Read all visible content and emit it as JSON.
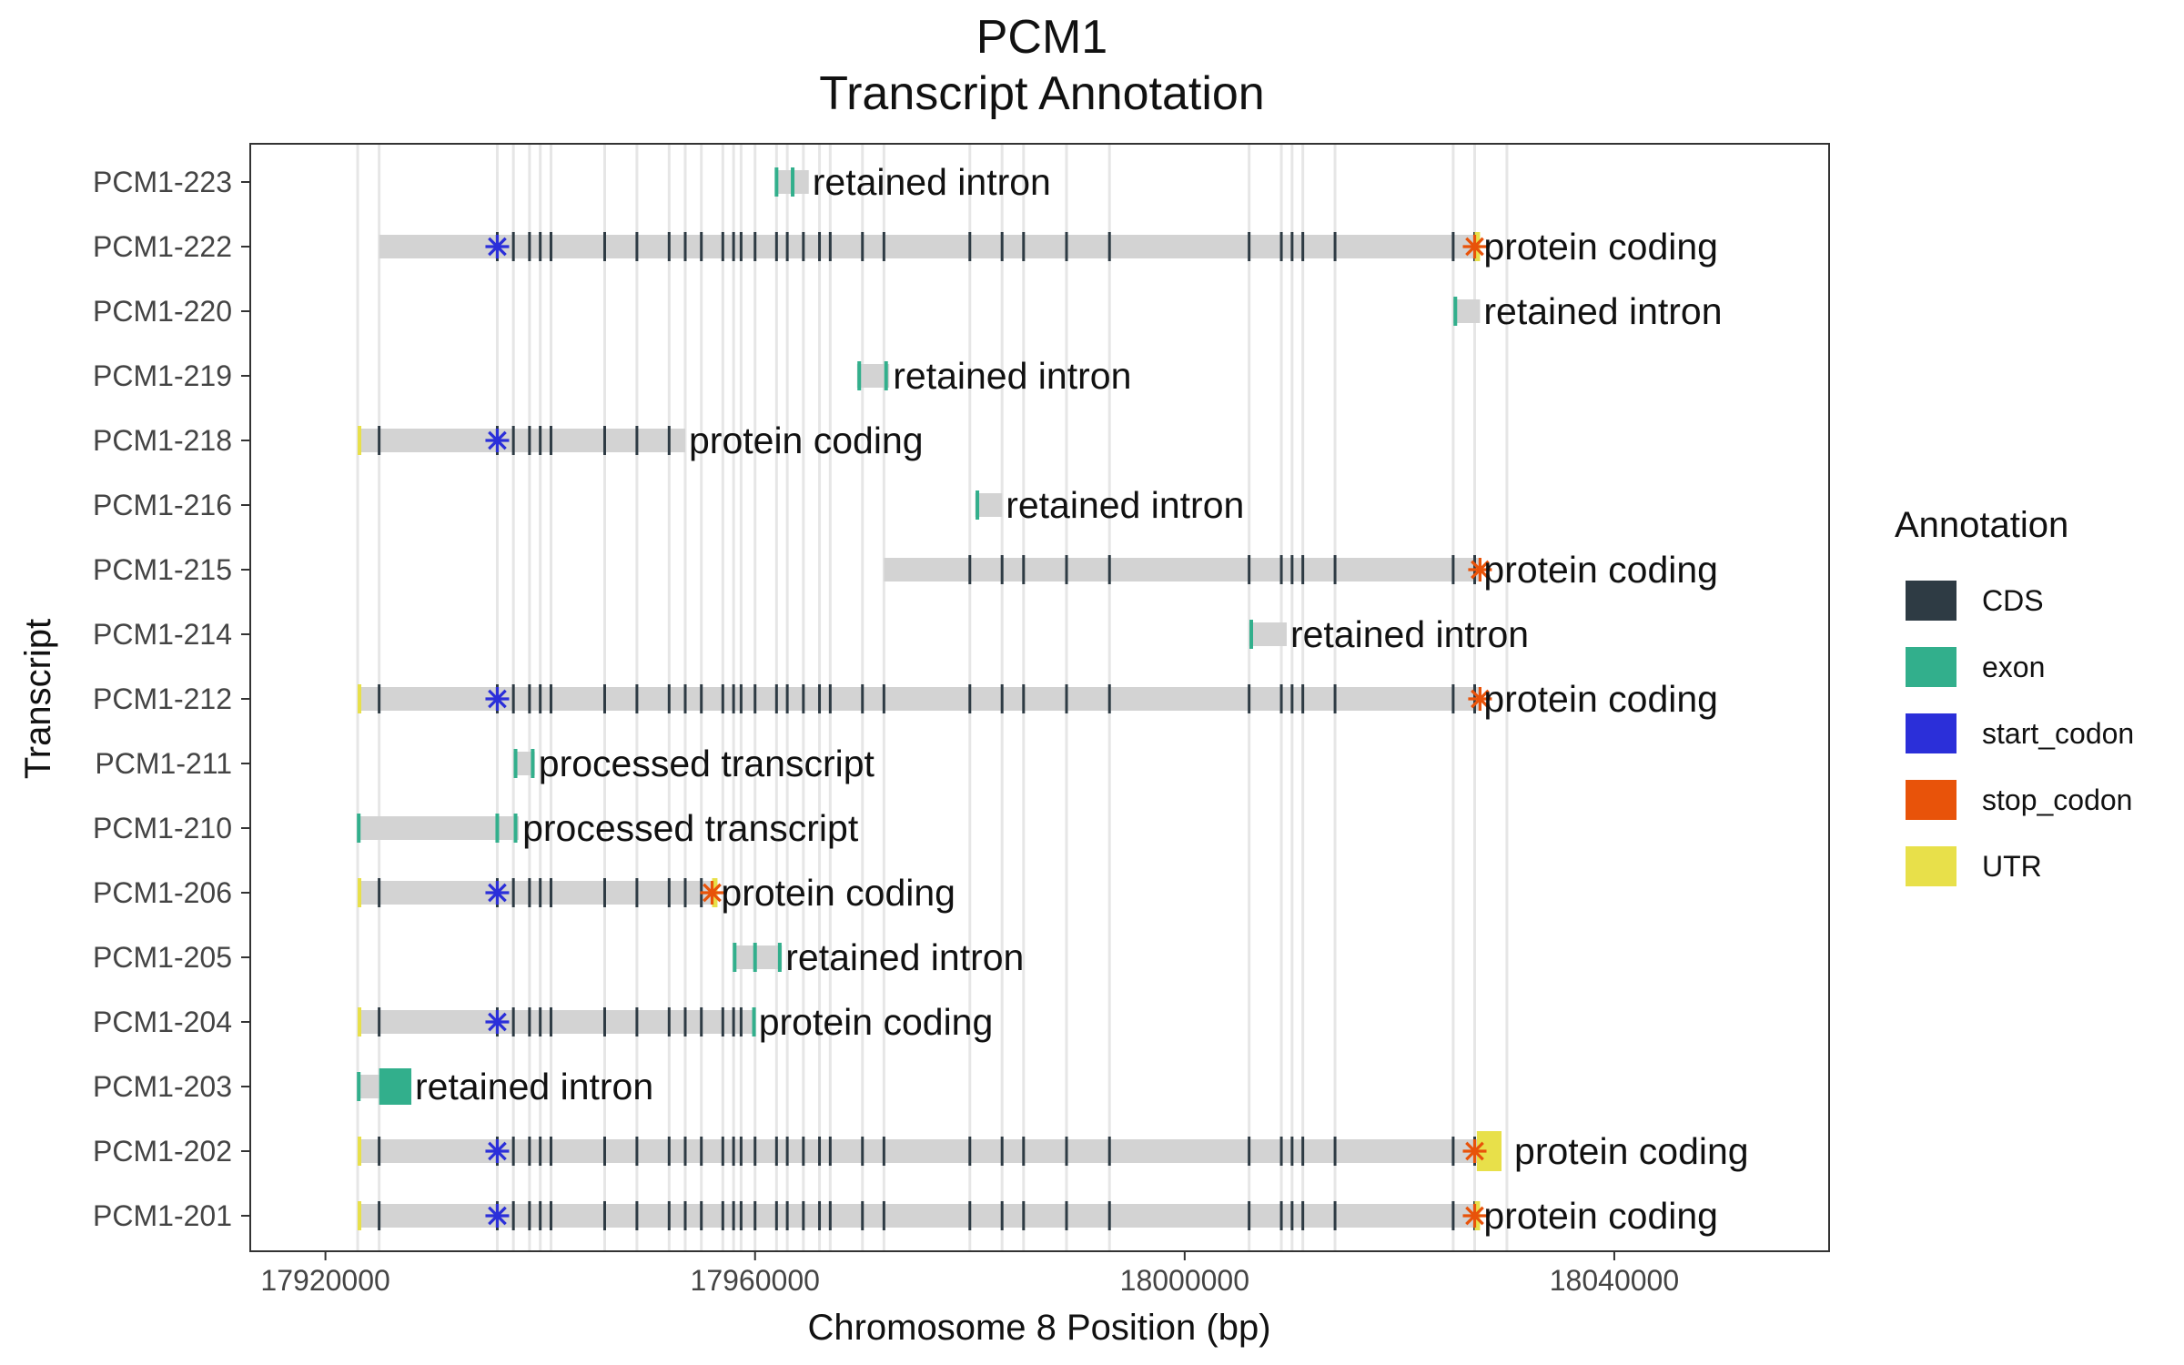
{
  "chart_data": {
    "type": "transcript-annotation",
    "title": "PCM1",
    "subtitle": "Transcript Annotation",
    "xlabel": "Chromosome 8 Position (bp)",
    "ylabel": "Transcript",
    "xlim": [
      17913000,
      18060000
    ],
    "x_ticks": [
      17920000,
      17960000,
      18000000,
      18040000
    ],
    "x_tick_labels": [
      "17920000",
      "17960000",
      "18000000",
      "18040000"
    ],
    "grid": true,
    "legend": {
      "title": "Annotation",
      "position": "right",
      "entries": [
        {
          "label": "CDS",
          "color": "#2E3B44"
        },
        {
          "label": "exon",
          "color": "#32AF8C"
        },
        {
          "label": "start_codon",
          "color": "#2B2FD9"
        },
        {
          "label": "stop_codon",
          "color": "#E8530A"
        },
        {
          "label": "UTR",
          "color": "#E8E04A"
        }
      ]
    },
    "exon_positions": [
      17923000,
      17925000,
      17936000,
      17937500,
      17939000,
      17940000,
      17941000,
      17946000,
      17949000,
      17952000,
      17953500,
      17955000,
      17957000,
      17958000,
      17958700,
      17960000,
      17962000,
      17963000,
      17964500,
      17966000,
      17967000,
      17970000,
      17972000,
      17980000,
      17983000,
      17985000,
      17989000,
      17993000,
      18006000,
      18009000,
      18010000,
      18011000,
      18014000,
      18025000,
      18027000,
      18030000
    ],
    "transcripts": [
      {
        "name": "PCM1-223",
        "biotype": "retained intron",
        "start": 17962000,
        "end": 17965000,
        "exons": [
          17962000,
          17963500
        ],
        "cds": false,
        "start_codon": null,
        "stop_codon": null,
        "utr5": null,
        "utr3": null
      },
      {
        "name": "PCM1-222",
        "biotype": "protein coding",
        "start": 17925000,
        "end": 18027500,
        "exons": [],
        "cds": true,
        "start_codon": 17936000,
        "stop_codon": 18027000,
        "utr5": null,
        "utr3": [
          18027000,
          18027500
        ]
      },
      {
        "name": "PCM1-220",
        "biotype": "retained intron",
        "start": 18025000,
        "end": 18027500,
        "exons": [
          18025200
        ],
        "cds": false,
        "start_codon": null,
        "stop_codon": null,
        "utr5": null,
        "utr3": null
      },
      {
        "name": "PCM1-219",
        "biotype": "retained intron",
        "start": 17969500,
        "end": 17972500,
        "exons": [
          17969700,
          17972200
        ],
        "cds": false,
        "start_codon": null,
        "stop_codon": null,
        "utr5": null,
        "utr3": null
      },
      {
        "name": "PCM1-218",
        "biotype": "protein coding",
        "start": 17923000,
        "end": 17953500,
        "exons": [],
        "cds": true,
        "start_codon": 17936000,
        "stop_codon": null,
        "utr5": [
          17923000,
          17923300
        ],
        "utr3": null
      },
      {
        "name": "PCM1-216",
        "biotype": "retained intron",
        "start": 17980500,
        "end": 17983000,
        "exons": [
          17980700
        ],
        "cds": false,
        "start_codon": null,
        "stop_codon": null,
        "utr5": null,
        "utr3": null
      },
      {
        "name": "PCM1-215",
        "biotype": "protein coding",
        "start": 17972000,
        "end": 18027500,
        "exons": [],
        "cds": true,
        "start_codon": null,
        "stop_codon": 18027500,
        "utr5": null,
        "utr3": null
      },
      {
        "name": "PCM1-214",
        "biotype": "retained intron",
        "start": 18006000,
        "end": 18009500,
        "exons": [
          18006200
        ],
        "cds": false,
        "start_codon": null,
        "stop_codon": null,
        "utr5": null,
        "utr3": null
      },
      {
        "name": "PCM1-212",
        "biotype": "protein coding",
        "start": 17923000,
        "end": 18027500,
        "exons": [],
        "cds": true,
        "start_codon": 17936000,
        "stop_codon": 18027500,
        "utr5": [
          17923000,
          17923300
        ],
        "utr3": null
      },
      {
        "name": "PCM1-211",
        "biotype": "processed transcript",
        "start": 17937500,
        "end": 17939500,
        "exons": [
          17937700,
          17939300
        ],
        "cds": false,
        "start_codon": null,
        "stop_codon": null,
        "utr5": null,
        "utr3": null
      },
      {
        "name": "PCM1-210",
        "biotype": "processed transcript",
        "start": 17923000,
        "end": 17938000,
        "exons": [
          17923100,
          17936000,
          17937700
        ],
        "cds": false,
        "start_codon": null,
        "stop_codon": null,
        "utr5": null,
        "utr3": null
      },
      {
        "name": "PCM1-206",
        "biotype": "protein coding",
        "start": 17923000,
        "end": 17956500,
        "exons": [],
        "cds": true,
        "start_codon": 17936000,
        "stop_codon": 17956000,
        "utr5": [
          17923000,
          17923300
        ],
        "utr3": [
          17956000,
          17956500
        ]
      },
      {
        "name": "PCM1-205",
        "biotype": "retained intron",
        "start": 17958000,
        "end": 17962500,
        "exons": [
          17958100,
          17960000,
          17962300
        ],
        "cds": false,
        "start_codon": null,
        "stop_codon": null,
        "utr5": null,
        "utr3": null
      },
      {
        "name": "PCM1-204",
        "biotype": "protein coding",
        "start": 17923000,
        "end": 17960000,
        "exons": [
          17959900
        ],
        "cds": true,
        "start_codon": 17936000,
        "stop_codon": null,
        "utr5": [
          17923000,
          17923300
        ],
        "utr3": null
      },
      {
        "name": "PCM1-203",
        "biotype": "retained intron",
        "start": 17923000,
        "end": 17928000,
        "exons": [
          17923100
        ],
        "big_exon": [
          17925000,
          17928000
        ],
        "cds": false,
        "start_codon": null,
        "stop_codon": null,
        "utr5": null,
        "utr3": null
      },
      {
        "name": "PCM1-202",
        "biotype": "protein coding",
        "start": 17923000,
        "end": 18029500,
        "exons": [],
        "cds": true,
        "start_codon": 17936000,
        "stop_codon": 18027000,
        "utr5": [
          17923000,
          17923300
        ],
        "utr3": [
          18027200,
          18029500
        ]
      },
      {
        "name": "PCM1-201",
        "biotype": "protein coding",
        "start": 17923000,
        "end": 18027500,
        "exons": [],
        "cds": true,
        "start_codon": 17936000,
        "stop_codon": 18027000,
        "utr5": [
          17923000,
          17923300
        ],
        "utr3": [
          18027000,
          18027500
        ]
      }
    ]
  }
}
